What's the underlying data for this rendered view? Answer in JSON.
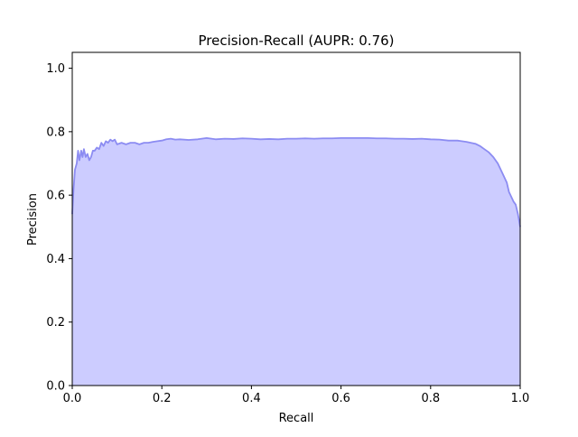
{
  "chart_data": {
    "type": "area",
    "title": "Precision-Recall (AUPR: 0.76)",
    "xlabel": "Recall",
    "ylabel": "Precision",
    "xlim": [
      0.0,
      1.0
    ],
    "ylim": [
      0.0,
      1.05
    ],
    "grid": false,
    "legend": "none",
    "x_ticks": [
      "0.0",
      "0.2",
      "0.4",
      "0.6",
      "0.8",
      "1.0"
    ],
    "y_ticks": [
      "0.0",
      "0.2",
      "0.4",
      "0.6",
      "0.8",
      "1.0"
    ],
    "colors": {
      "line": "#8c8cf2",
      "fill": "#ccccff"
    },
    "series": [
      {
        "x": [
          0.0,
          0.003,
          0.006,
          0.01,
          0.013,
          0.016,
          0.02,
          0.023,
          0.026,
          0.03,
          0.034,
          0.038,
          0.042,
          0.046,
          0.05,
          0.055,
          0.06,
          0.065,
          0.07,
          0.075,
          0.08,
          0.085,
          0.09,
          0.095,
          0.1,
          0.11,
          0.12,
          0.13,
          0.14,
          0.15,
          0.16,
          0.17,
          0.18,
          0.19,
          0.2,
          0.21,
          0.22,
          0.23,
          0.24,
          0.26,
          0.28,
          0.3,
          0.32,
          0.34,
          0.36,
          0.38,
          0.4,
          0.42,
          0.44,
          0.46,
          0.48,
          0.5,
          0.52,
          0.54,
          0.56,
          0.58,
          0.6,
          0.62,
          0.64,
          0.66,
          0.68,
          0.7,
          0.72,
          0.74,
          0.76,
          0.78,
          0.8,
          0.82,
          0.84,
          0.86,
          0.88,
          0.9,
          0.91,
          0.92,
          0.93,
          0.94,
          0.95,
          0.96,
          0.97,
          0.975,
          0.98,
          0.985,
          0.99,
          0.995,
          1.0
        ],
        "y": [
          0.54,
          0.62,
          0.68,
          0.7,
          0.74,
          0.71,
          0.74,
          0.72,
          0.745,
          0.72,
          0.73,
          0.71,
          0.72,
          0.74,
          0.74,
          0.75,
          0.745,
          0.765,
          0.755,
          0.77,
          0.765,
          0.775,
          0.77,
          0.775,
          0.76,
          0.765,
          0.76,
          0.765,
          0.765,
          0.76,
          0.765,
          0.765,
          0.768,
          0.77,
          0.772,
          0.776,
          0.778,
          0.775,
          0.776,
          0.774,
          0.776,
          0.78,
          0.776,
          0.778,
          0.777,
          0.779,
          0.778,
          0.776,
          0.777,
          0.776,
          0.778,
          0.778,
          0.779,
          0.778,
          0.779,
          0.779,
          0.78,
          0.78,
          0.78,
          0.78,
          0.779,
          0.779,
          0.778,
          0.778,
          0.777,
          0.778,
          0.776,
          0.775,
          0.772,
          0.772,
          0.768,
          0.762,
          0.755,
          0.745,
          0.735,
          0.72,
          0.7,
          0.67,
          0.64,
          0.61,
          0.595,
          0.58,
          0.57,
          0.54,
          0.5
        ]
      }
    ]
  }
}
